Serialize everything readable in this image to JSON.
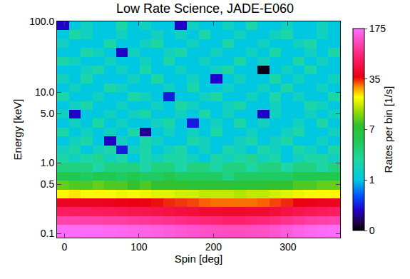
{
  "chart_data": {
    "type": "heatmap",
    "title": "Low Rate Science, JADE-E060",
    "x_label": "Spin [deg]",
    "y_label": "Energy [keV]",
    "log": "y",
    "grid": false,
    "xlim": [
      -10,
      370
    ],
    "xticks": [
      0,
      100,
      200,
      300
    ],
    "ylim": [
      0.088,
      100
    ],
    "yticks": [
      0.1,
      0.5,
      {
        "value": 1,
        "label": "1.0"
      },
      {
        "value": 5,
        "label": "5.0"
      },
      {
        "value": 10,
        "label": "10.0"
      },
      {
        "value": 100,
        "label": "100.0"
      }
    ],
    "x_edges": [
      -10,
      5.83,
      21.67,
      37.5,
      53.33,
      69.17,
      85,
      100.83,
      116.67,
      132.5,
      148.33,
      164.17,
      180,
      195.83,
      211.67,
      227.5,
      243.33,
      259.17,
      275,
      290.83,
      306.67,
      322.5,
      338.33,
      354.17,
      370
    ],
    "y_edges": [
      0.088,
      0.1334,
      0.1778,
      0.2371,
      0.3162,
      0.4217,
      0.5623,
      0.7499,
      1,
      1.334,
      1.778,
      2.371,
      3.162,
      4.217,
      5.623,
      7.499,
      10,
      13.34,
      17.78,
      23.71,
      31.62,
      42.17,
      56.23,
      74.99,
      100
    ],
    "cells": [
      [
        170,
        168,
        166,
        165,
        162,
        158,
        153,
        150,
        145,
        139,
        133,
        128,
        122,
        119,
        116,
        116,
        119,
        122,
        129,
        139,
        150,
        158,
        165,
        170
      ],
      [
        105,
        104,
        103,
        102,
        100,
        98,
        95,
        92,
        89,
        86,
        82,
        79,
        76,
        74,
        71,
        71,
        74,
        76,
        80,
        86,
        92,
        98,
        102,
        105
      ],
      [
        65,
        64,
        64,
        63,
        62,
        60,
        58,
        57,
        55,
        53,
        51,
        49,
        47,
        46,
        44,
        44,
        46,
        47,
        49,
        53,
        57,
        60,
        63,
        65
      ],
      [
        42,
        42,
        41,
        41,
        40,
        39,
        38,
        37,
        36,
        34,
        33,
        32,
        30,
        29,
        29,
        29,
        29,
        30,
        32,
        34,
        37,
        39,
        41,
        42
      ],
      [
        20,
        21,
        19,
        20,
        19,
        18,
        19,
        18,
        17,
        17,
        16,
        16,
        15,
        15,
        15,
        14,
        15,
        15,
        16,
        17,
        18,
        19,
        20,
        20
      ],
      [
        10,
        9,
        9,
        10,
        9,
        9,
        8,
        9,
        8,
        8,
        8,
        7,
        7,
        7,
        7,
        7,
        7,
        7,
        8,
        8,
        9,
        9,
        10,
        10
      ],
      [
        5,
        5,
        4,
        5,
        5,
        4,
        5,
        4,
        4,
        5,
        4,
        4,
        4,
        4,
        3,
        4,
        4,
        4,
        4,
        4,
        5,
        5,
        5,
        5
      ],
      [
        3,
        3,
        3,
        2,
        3,
        3,
        3,
        2,
        3,
        3,
        2,
        3,
        3,
        2,
        3,
        3,
        2,
        3,
        3,
        2,
        3,
        3,
        2,
        3
      ],
      [
        2,
        1.5,
        2,
        2.5,
        1.5,
        2,
        1,
        2,
        1.5,
        2,
        2,
        1.5,
        1,
        2,
        1.5,
        2,
        2.5,
        1.5,
        2,
        1,
        1.5,
        2,
        2,
        1.5
      ],
      [
        1.5,
        2,
        1,
        1.5,
        2,
        0.5,
        1.5,
        2,
        1,
        1.5,
        2,
        1,
        1.5,
        1,
        2,
        1.5,
        1,
        2,
        1.5,
        1,
        2,
        1.5,
        1,
        2
      ],
      [
        1,
        1.5,
        2,
        1,
        0.4,
        1.5,
        1,
        2,
        1.5,
        1,
        1,
        2,
        1.5,
        1,
        1,
        1.5,
        2,
        1,
        1.5,
        2,
        1,
        1,
        1.5,
        1
      ],
      [
        2,
        1,
        1.5,
        1,
        1.5,
        1,
        2,
        0.3,
        1,
        1.5,
        1,
        1.5,
        1,
        2,
        1,
        1,
        1.5,
        1,
        1,
        1.5,
        2,
        1,
        1,
        1.5
      ],
      [
        1,
        1.5,
        1,
        2,
        1,
        1.5,
        1,
        1,
        1.5,
        2,
        1,
        0.5,
        1,
        1.5,
        1,
        2,
        1,
        1.5,
        1,
        1,
        1.5,
        1,
        2,
        1
      ],
      [
        1.5,
        0.4,
        1,
        1,
        1.5,
        1,
        1.5,
        2,
        1,
        1,
        1.5,
        1,
        2,
        1,
        1.5,
        1,
        1,
        0.4,
        1.5,
        1,
        1,
        1.5,
        1,
        1.5
      ],
      [
        1,
        1.5,
        2,
        1,
        1,
        1.5,
        1,
        1,
        1.5,
        1,
        2,
        1.5,
        1,
        1,
        1.5,
        2,
        1,
        1,
        1.5,
        1,
        1,
        2,
        1.5,
        1
      ],
      [
        2,
        1,
        1,
        1.5,
        1,
        1,
        2,
        1.5,
        1,
        0.5,
        1,
        1,
        1.5,
        2,
        1,
        1,
        1.5,
        1,
        2,
        1,
        1.5,
        1,
        1,
        2
      ],
      [
        1,
        1.5,
        1,
        1,
        2,
        1.5,
        1,
        1,
        1,
        1.5,
        1,
        2,
        1,
        1,
        1.5,
        1,
        1,
        1.5,
        1,
        2,
        1,
        1,
        1.5,
        1
      ],
      [
        1.5,
        1,
        2,
        1,
        1,
        1,
        1.5,
        1,
        2,
        1,
        1,
        1.5,
        1,
        0.4,
        1,
        1.5,
        1,
        1,
        2,
        1,
        1.5,
        1,
        1,
        1.5
      ],
      [
        1,
        1,
        1.5,
        2,
        1,
        1.5,
        1,
        2,
        1,
        1,
        1.5,
        1,
        1,
        1.5,
        2,
        1,
        1,
        0.05,
        1,
        1.5,
        1,
        2,
        1,
        1
      ],
      [
        2,
        1.5,
        1,
        1,
        1.5,
        1,
        1,
        1.5,
        1,
        2,
        1,
        1,
        1.5,
        1,
        1,
        2,
        1,
        1.5,
        1,
        1,
        2,
        1,
        1.5,
        1
      ],
      [
        1,
        1,
        2,
        1.5,
        1,
        0.4,
        1.5,
        1,
        1,
        1.5,
        2,
        1,
        1,
        1.5,
        1,
        1,
        1.5,
        1,
        2,
        1,
        1,
        1.5,
        1,
        2
      ],
      [
        1.5,
        1,
        1,
        1,
        2,
        1,
        1,
        1.5,
        2,
        1,
        1,
        1.5,
        1,
        1,
        2,
        1,
        1,
        1.5,
        1,
        1,
        1.5,
        2,
        1,
        1
      ],
      [
        1,
        2,
        1.5,
        1,
        1,
        1.5,
        1,
        1,
        1.5,
        1,
        1.5,
        1,
        2,
        1,
        1,
        1.5,
        1,
        1,
        1.5,
        2,
        1,
        1,
        1.5,
        1
      ],
      [
        0.4,
        1,
        1.5,
        1,
        1,
        2,
        1,
        1.5,
        1,
        1,
        0.4,
        1.5,
        1,
        1,
        1.5,
        1,
        2,
        1,
        1,
        1.5,
        1,
        1,
        1.5,
        1
      ]
    ],
    "colorbar": {
      "title": "Rates per bin [1/s]",
      "range": [
        0,
        175
      ],
      "ticks": [
        0,
        1,
        7,
        35,
        175
      ]
    }
  }
}
